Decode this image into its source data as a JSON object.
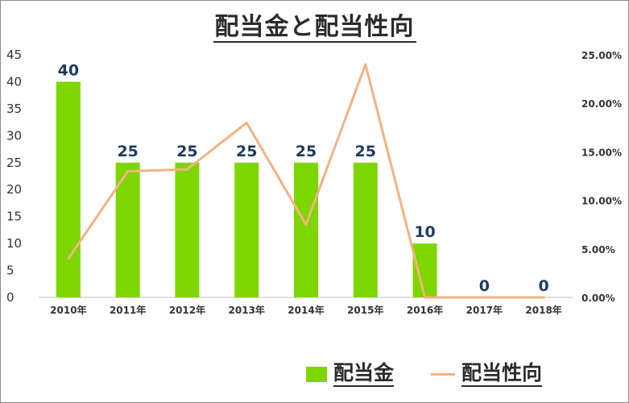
{
  "chart_data": {
    "type": "bar",
    "title": "配当金と配当性向",
    "categories": [
      "2010年",
      "2011年",
      "2012年",
      "2013年",
      "2014年",
      "2015年",
      "2016年",
      "2017年",
      "2018年"
    ],
    "series": [
      {
        "name": "配当金",
        "type": "bar",
        "axis": "left",
        "color": "#7ed600",
        "values": [
          40,
          25,
          25,
          25,
          25,
          25,
          10,
          0,
          0
        ],
        "labels": [
          "40",
          "25",
          "25",
          "25",
          "25",
          "25",
          "10",
          "0",
          "0"
        ]
      },
      {
        "name": "配当性向",
        "type": "line",
        "axis": "right",
        "color": "#f4b183",
        "values": [
          0.04,
          0.13,
          0.132,
          0.18,
          0.075,
          0.24,
          0.0,
          0.0,
          0.0
        ]
      }
    ],
    "ylim": [
      0,
      45
    ],
    "yticks": [
      "0",
      "5",
      "10",
      "15",
      "20",
      "25",
      "30",
      "35",
      "40",
      "45"
    ],
    "y2lim": [
      0,
      0.25
    ],
    "y2ticks": [
      "0.00%",
      "5.00%",
      "10.00%",
      "15.00%",
      "20.00%",
      "25.00%"
    ],
    "grid": false,
    "legend": "bottom-right"
  }
}
